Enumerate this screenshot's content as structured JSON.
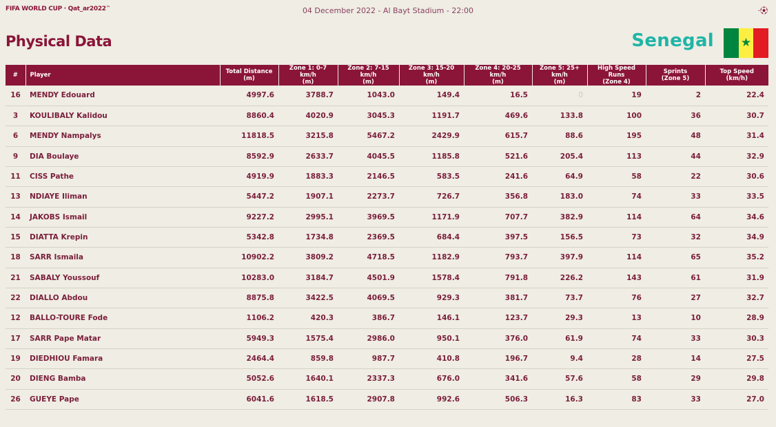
{
  "header": {
    "brand": "FIFA WORLD CUP · Qat_ar2022",
    "brand_tm": "™",
    "match_info": "04 December 2022 - Al Bayt Stadium - 22:00",
    "corner_icon": "ball-icon"
  },
  "page_title": "Physical Data",
  "team": {
    "name": "Senegal",
    "flag_colors": [
      "#00853f",
      "#fdef42",
      "#e31b23"
    ]
  },
  "table": {
    "columns": [
      {
        "line1": "#",
        "line2": ""
      },
      {
        "line1": "Player",
        "line2": ""
      },
      {
        "line1": "Total Distance",
        "line2": "(m)"
      },
      {
        "line1": "Zone 1: 0-7 km/h",
        "line2": "(m)"
      },
      {
        "line1": "Zone 2: 7-15 km/h",
        "line2": "(m)"
      },
      {
        "line1": "Zone 3: 15-20 km/h",
        "line2": "(m)"
      },
      {
        "line1": "Zone 4: 20-25 km/h",
        "line2": "(m)"
      },
      {
        "line1": "Zone 5: 25+ km/h",
        "line2": "(m)"
      },
      {
        "line1": "High Speed Runs",
        "line2": "(Zone 4)"
      },
      {
        "line1": "Sprints",
        "line2": "(Zone 5)"
      },
      {
        "line1": "Top Speed",
        "line2": "(km/h)"
      }
    ],
    "rows": [
      [
        "16",
        "MENDY Edouard",
        "4997.6",
        "3788.7",
        "1043.0",
        "149.4",
        "16.5",
        "0",
        "19",
        "2",
        "22.4"
      ],
      [
        "3",
        "KOULIBALY Kalidou",
        "8860.4",
        "4020.9",
        "3045.3",
        "1191.7",
        "469.6",
        "133.8",
        "100",
        "36",
        "30.7"
      ],
      [
        "6",
        "MENDY Nampalys",
        "11818.5",
        "3215.8",
        "5467.2",
        "2429.9",
        "615.7",
        "88.6",
        "195",
        "48",
        "31.4"
      ],
      [
        "9",
        "DIA Boulaye",
        "8592.9",
        "2633.7",
        "4045.5",
        "1185.8",
        "521.6",
        "205.4",
        "113",
        "44",
        "32.9"
      ],
      [
        "11",
        "CISS Pathe",
        "4919.9",
        "1883.3",
        "2146.5",
        "583.5",
        "241.6",
        "64.9",
        "58",
        "22",
        "30.6"
      ],
      [
        "13",
        "NDIAYE Iliman",
        "5447.2",
        "1907.1",
        "2273.7",
        "726.7",
        "356.8",
        "183.0",
        "74",
        "33",
        "33.5"
      ],
      [
        "14",
        "JAKOBS Ismail",
        "9227.2",
        "2995.1",
        "3969.5",
        "1171.9",
        "707.7",
        "382.9",
        "114",
        "64",
        "34.6"
      ],
      [
        "15",
        "DIATTA Krepin",
        "5342.8",
        "1734.8",
        "2369.5",
        "684.4",
        "397.5",
        "156.5",
        "73",
        "32",
        "34.9"
      ],
      [
        "18",
        "SARR Ismaila",
        "10902.2",
        "3809.2",
        "4718.5",
        "1182.9",
        "793.7",
        "397.9",
        "114",
        "65",
        "35.2"
      ],
      [
        "21",
        "SABALY Youssouf",
        "10283.0",
        "3184.7",
        "4501.9",
        "1578.4",
        "791.8",
        "226.2",
        "143",
        "61",
        "31.9"
      ],
      [
        "22",
        "DIALLO Abdou",
        "8875.8",
        "3422.5",
        "4069.5",
        "929.3",
        "381.7",
        "73.7",
        "76",
        "27",
        "32.7"
      ],
      [
        "12",
        "BALLO-TOURE Fode",
        "1106.2",
        "420.3",
        "386.7",
        "146.1",
        "123.7",
        "29.3",
        "13",
        "10",
        "28.9"
      ],
      [
        "17",
        "SARR Pape Matar",
        "5949.3",
        "1575.4",
        "2986.0",
        "950.1",
        "376.0",
        "61.9",
        "74",
        "33",
        "30.3"
      ],
      [
        "19",
        "DIEDHIOU Famara",
        "2464.4",
        "859.8",
        "987.7",
        "410.8",
        "196.7",
        "9.4",
        "28",
        "14",
        "27.5"
      ],
      [
        "20",
        "DIENG Bamba",
        "5052.6",
        "1640.1",
        "2337.3",
        "676.0",
        "341.6",
        "57.6",
        "58",
        "29",
        "29.8"
      ],
      [
        "26",
        "GUEYE Pape",
        "6041.6",
        "1618.5",
        "2907.8",
        "992.6",
        "506.3",
        "16.3",
        "83",
        "33",
        "27.0"
      ]
    ]
  }
}
